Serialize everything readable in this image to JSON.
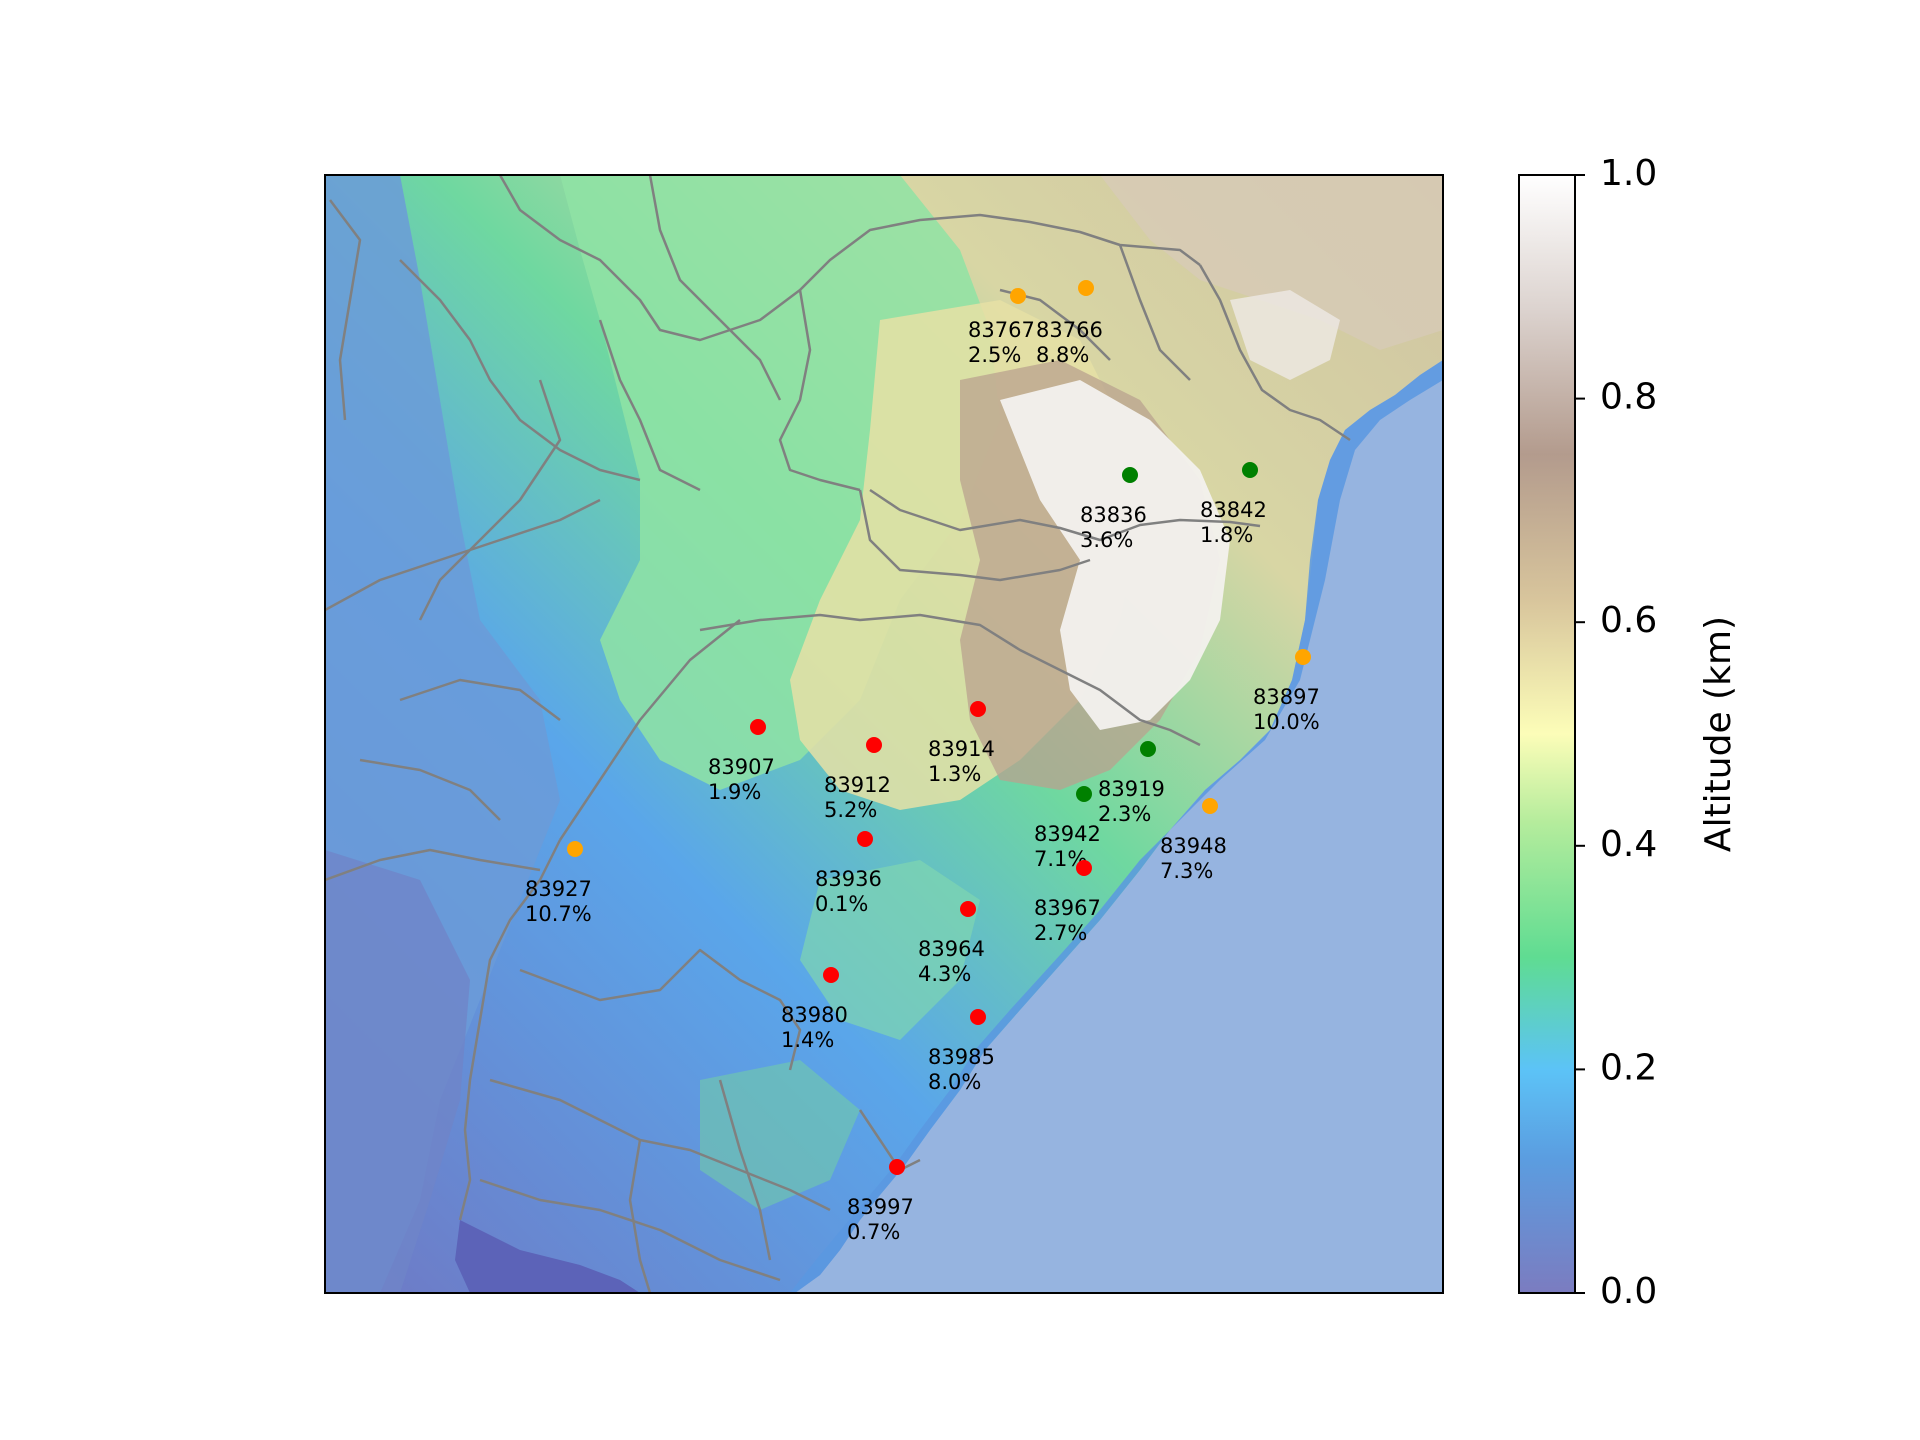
{
  "map": {
    "colorbar": {
      "label": "Altitude (km)",
      "ticks": [
        "0.0",
        "0.2",
        "0.4",
        "0.6",
        "0.8",
        "1.0"
      ],
      "range": [
        0.0,
        1.0
      ],
      "colormap": "terrain",
      "colors": [
        "#7b7cc0",
        "#5cc3f7",
        "#5fdc92",
        "#fcfdb8",
        "#b39b8d",
        "#ffffff"
      ]
    },
    "ocean_color": "#96b4e0",
    "border_color": "#808080",
    "marker_colors": {
      "red": "#ff0000",
      "orange": "#ffa500",
      "green": "#008000"
    },
    "stations": [
      {
        "id": "83767",
        "pct": "2.5%",
        "color": "orange"
      },
      {
        "id": "83766",
        "pct": "8.8%",
        "color": "orange"
      },
      {
        "id": "83836",
        "pct": "3.6%",
        "color": "green"
      },
      {
        "id": "83842",
        "pct": "1.8%",
        "color": "green"
      },
      {
        "id": "83897",
        "pct": "10.0%",
        "color": "orange"
      },
      {
        "id": "83914",
        "pct": "1.3%",
        "color": "red"
      },
      {
        "id": "83907",
        "pct": "1.9%",
        "color": "red"
      },
      {
        "id": "83912",
        "pct": "5.2%",
        "color": "red"
      },
      {
        "id": "83919",
        "pct": "2.3%",
        "color": "green"
      },
      {
        "id": "83942",
        "pct": "7.1%",
        "color": "green"
      },
      {
        "id": "83948",
        "pct": "7.3%",
        "color": "orange"
      },
      {
        "id": "83927",
        "pct": "10.7%",
        "color": "orange"
      },
      {
        "id": "83936",
        "pct": "0.1%",
        "color": "red"
      },
      {
        "id": "83967",
        "pct": "2.7%",
        "color": "red"
      },
      {
        "id": "83964",
        "pct": "4.3%",
        "color": "red"
      },
      {
        "id": "83980",
        "pct": "1.4%",
        "color": "red"
      },
      {
        "id": "83985",
        "pct": "8.0%",
        "color": "red"
      },
      {
        "id": "83997",
        "pct": "0.7%",
        "color": "red"
      }
    ]
  }
}
